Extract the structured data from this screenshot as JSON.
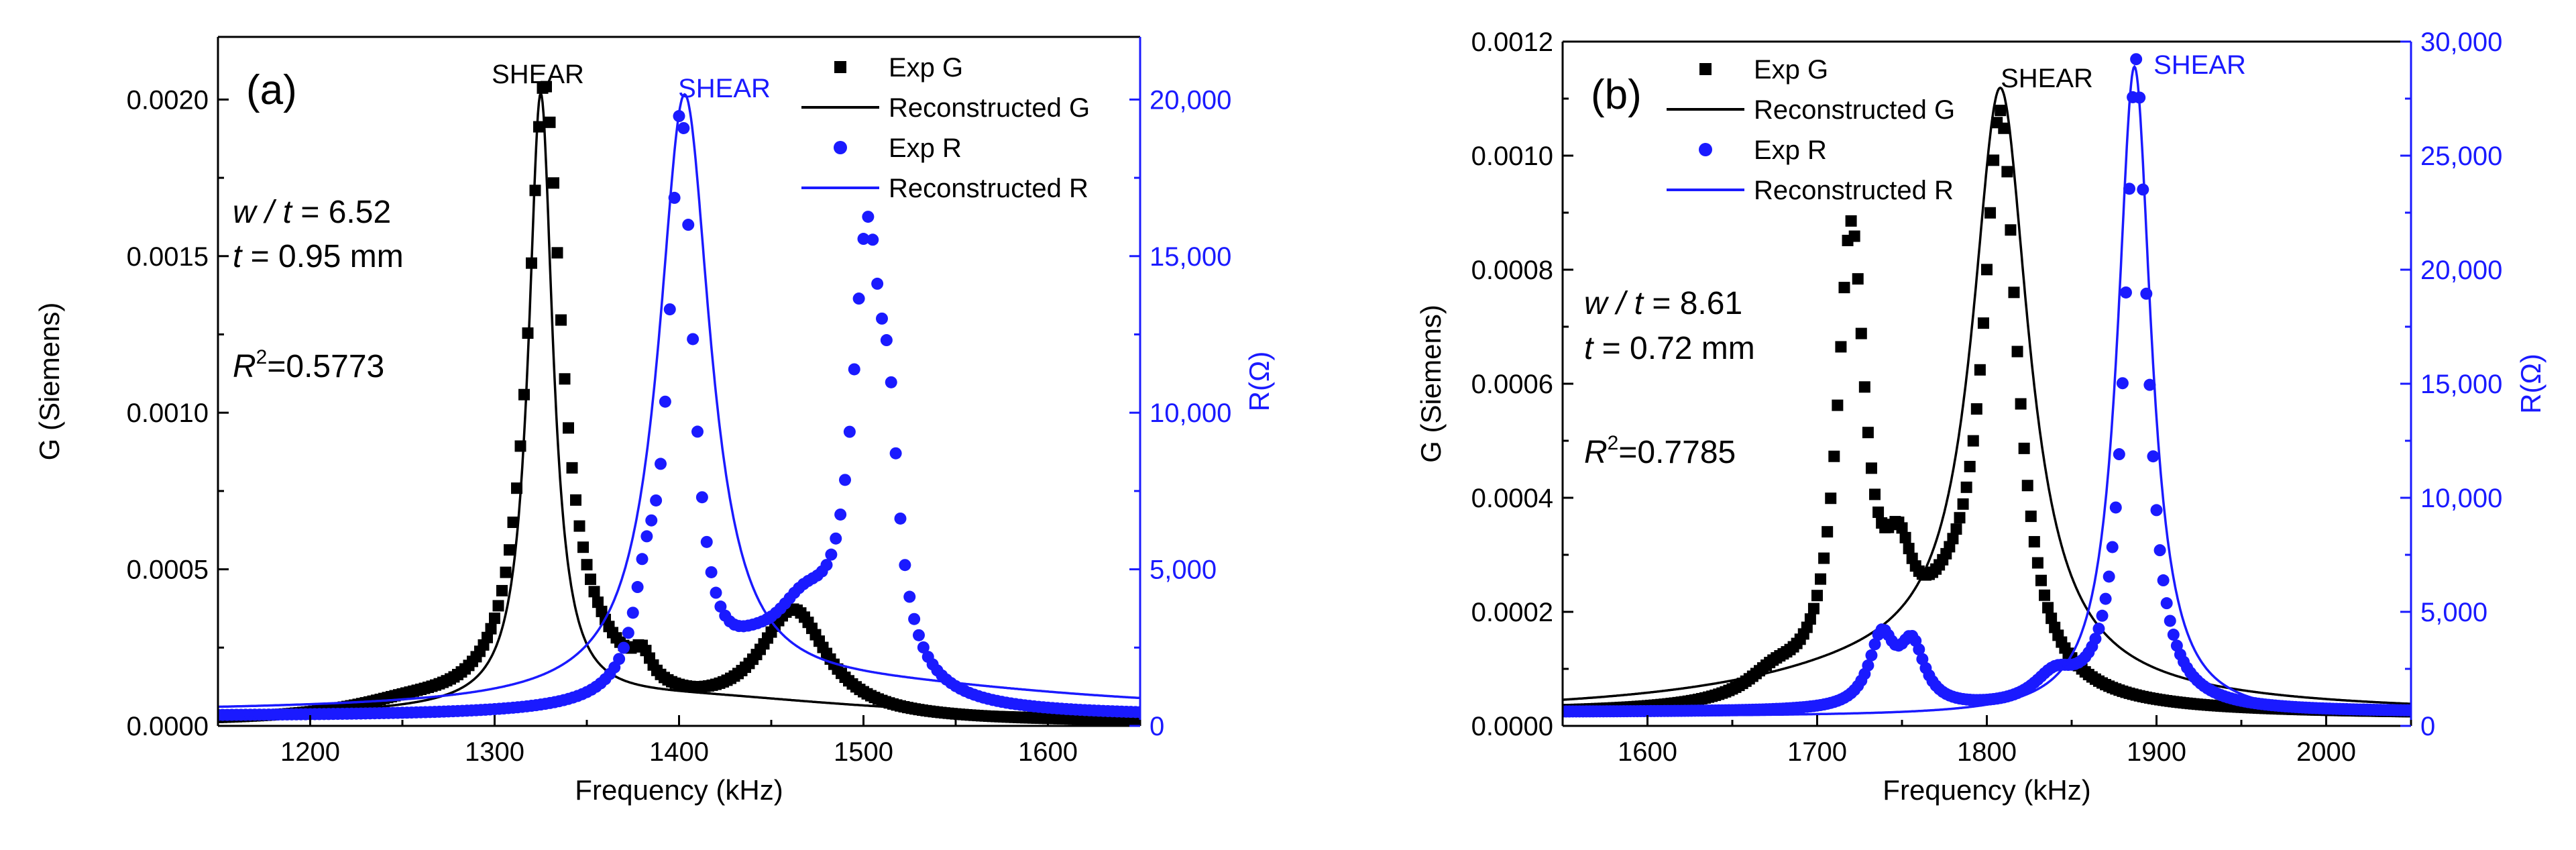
{
  "colors": {
    "black": "#000000",
    "blue": "#1a1aff",
    "bg": "#ffffff"
  },
  "chart_data": [
    {
      "type": "line",
      "panel_label": "(a)",
      "xlabel": "Frequency (kHz)",
      "ylabel": "G (Siemens)",
      "y2label": "R(Ω)",
      "xlim": [
        1150,
        1650
      ],
      "ylim": [
        0,
        0.0022
      ],
      "y2lim": [
        0,
        22000
      ],
      "xticks": [
        1200,
        1300,
        1400,
        1500,
        1600
      ],
      "yticks": [
        0,
        0.0005,
        0.001,
        0.0015,
        0.002
      ],
      "ytick_labels": [
        "0.0000",
        "0.0005",
        "0.0010",
        "0.0015",
        "0.0020"
      ],
      "y2ticks": [
        0,
        5000,
        10000,
        15000,
        20000
      ],
      "y2tick_labels": [
        "0",
        "5,000",
        "10,000",
        "15,000",
        "20,000"
      ],
      "annotations": {
        "shear_g": "SHEAR",
        "shear_r": "SHEAR",
        "wt_label": "w / t",
        "wt_value": " = 6.52",
        "t_label": "t",
        "t_value": " =  0.95 mm",
        "r2_label": "R",
        "r2_sup": "2",
        "r2_value": "=0.5773"
      },
      "legend": [
        "Exp G",
        "Reconstructed G",
        "Exp R",
        "Reconstructed R"
      ],
      "series": [
        {
          "name": "Exp G",
          "axis": "left",
          "marker": "square",
          "color": "#000000",
          "peaks": [
            [
              1327,
              0.00195,
              11
            ],
            [
              1350,
              0.00012,
              30
            ],
            [
              1380,
              8e-05,
              6
            ],
            [
              1462,
              0.00034,
              22
            ],
            [
              1255,
              4e-05,
              40
            ]
          ],
          "baseline": 1e-05,
          "range": [
            1150,
            1650
          ],
          "step": 2
        },
        {
          "name": "Reconstructed G",
          "axis": "left",
          "marker": "line",
          "color": "#000000",
          "peaks": [
            [
              1325,
              0.00195,
              8
            ]
          ],
          "broad": [
            [
              1400,
              7e-05,
              120
            ]
          ],
          "baseline": 2e-05,
          "range": [
            1150,
            1650
          ]
        },
        {
          "name": "Exp R",
          "axis": "right",
          "marker": "circle",
          "color": "#1a1aff",
          "peaks": [
            [
              1401,
              18500,
              8
            ],
            [
              1382,
              2500,
              8
            ],
            [
              1502,
              14000,
              10
            ],
            [
              1514,
              5000,
              6
            ],
            [
              1468,
              2500,
              22
            ],
            [
              1440,
              800,
              20
            ]
          ],
          "baseline": 300,
          "range": [
            1150,
            1650
          ],
          "step": 2.5
        },
        {
          "name": "Reconstructed R",
          "axis": "right",
          "marker": "line",
          "color": "#1a1aff",
          "peaks": [
            [
              1403,
              19200,
              17
            ]
          ],
          "broad": [
            [
              1500,
              800,
              150
            ]
          ],
          "baseline": 400,
          "range": [
            1150,
            1650
          ]
        }
      ]
    },
    {
      "type": "line",
      "panel_label": "(b)",
      "xlabel": "Frequency (kHz)",
      "ylabel": "G (Siemens)",
      "y2label": "R(Ω)",
      "xlim": [
        1550,
        2050
      ],
      "ylim": [
        0,
        0.0012
      ],
      "y2lim": [
        0,
        30000
      ],
      "xticks": [
        1600,
        1700,
        1800,
        1900,
        2000
      ],
      "yticks": [
        0,
        0.0002,
        0.0004,
        0.0006,
        0.0008,
        0.001,
        0.0012
      ],
      "ytick_labels": [
        "0.0000",
        "0.0002",
        "0.0004",
        "0.0006",
        "0.0008",
        "0.0010",
        "0.0012"
      ],
      "y2ticks": [
        0,
        5000,
        10000,
        15000,
        20000,
        25000,
        30000
      ],
      "y2tick_labels": [
        "0",
        "5,000",
        "10,000",
        "15,000",
        "20,000",
        "25,000",
        "30,000"
      ],
      "annotations": {
        "shear_g": "SHEAR",
        "shear_r": "SHEAR",
        "wt_label": "w / t",
        "wt_value": " = 8.61",
        "t_label": "t",
        "t_value": " =  0.72 mm",
        "r2_label": "R",
        "r2_sup": "2",
        "r2_value": "=0.7785"
      },
      "legend": [
        "Exp G",
        "Reconstructed G",
        "Exp R",
        "Reconstructed R"
      ],
      "series": [
        {
          "name": "Exp G",
          "axis": "left",
          "marker": "square",
          "color": "#000000",
          "peaks": [
            [
              1720,
              0.0008,
              10
            ],
            [
              1808,
              0.00098,
              12
            ],
            [
              1748,
              0.00015,
              10
            ],
            [
              1780,
              0.00012,
              30
            ],
            [
              1675,
              4e-05,
              20
            ]
          ],
          "baseline": 2e-05,
          "range": [
            1550,
            2050
          ],
          "step": 2
        },
        {
          "name": "Reconstructed G",
          "axis": "left",
          "marker": "line",
          "color": "#000000",
          "peaks": [
            [
              1808,
              0.00103,
              20
            ]
          ],
          "broad": [
            [
              1760,
              8e-05,
              120
            ]
          ],
          "baseline": 2e-05,
          "range": [
            1550,
            2050
          ]
        },
        {
          "name": "Exp R",
          "axis": "right",
          "marker": "circle",
          "color": "#1a1aff",
          "peaks": [
            [
              1888,
              28500,
              8
            ],
            [
              1738,
              3000,
              9
            ],
            [
              1756,
              2600,
              9
            ],
            [
              1840,
              1200,
              15
            ]
          ],
          "baseline": 600,
          "range": [
            1550,
            2050
          ],
          "step": 2
        },
        {
          "name": "Reconstructed R",
          "axis": "right",
          "marker": "line",
          "color": "#1a1aff",
          "peaks": [
            [
              1887,
              28500,
              12
            ]
          ],
          "baseline": 400,
          "range": [
            1550,
            2050
          ]
        }
      ]
    }
  ]
}
